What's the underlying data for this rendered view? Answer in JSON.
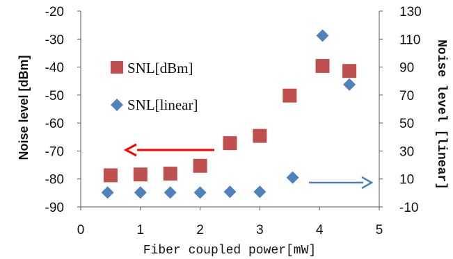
{
  "chart_data": {
    "type": "scatter",
    "xlabel": "Fiber coupled power[mW]",
    "ylabel": "Noise level [dBm]",
    "y2label": "Noise level [linear]",
    "xlim": [
      0,
      5
    ],
    "ylim": [
      -90,
      -20
    ],
    "y2lim": [
      -10,
      130
    ],
    "xticks": [
      "0",
      "1",
      "2",
      "3",
      "4",
      "5"
    ],
    "yticks": [
      "-20",
      "-30",
      "-40",
      "-50",
      "-60",
      "-70",
      "-80",
      "-90"
    ],
    "y2ticks": [
      "130",
      "110",
      "90",
      "70",
      "50",
      "30",
      "10",
      "-10"
    ],
    "grid": false,
    "legend_position": "left",
    "series": [
      {
        "name": "SNL[dBm]",
        "axis": "left",
        "marker": "square",
        "color": "#c0504d",
        "x": [
          0.5,
          1.0,
          1.5,
          2.0,
          2.5,
          3.0,
          3.5,
          4.05,
          4.5
        ],
        "y": [
          -78.7,
          -78.4,
          -78.1,
          -75.3,
          -67.2,
          -64.6,
          -50.2,
          -39.6,
          -41.4
        ]
      },
      {
        "name": "SNL[linear]",
        "axis": "right",
        "marker": "diamond",
        "color": "#4f81bd",
        "x": [
          0.45,
          1.0,
          1.5,
          2.0,
          2.5,
          3.0,
          3.55,
          4.05,
          4.5
        ],
        "y": [
          0.3,
          0.3,
          0.3,
          0.3,
          0.8,
          0.8,
          11.0,
          112.5,
          77.5
        ]
      }
    ],
    "annotations": [
      {
        "type": "arrow",
        "direction": "left",
        "color": "#ff0000",
        "meaning": "left axis"
      },
      {
        "type": "arrow",
        "direction": "right",
        "color": "#4a7ebb",
        "meaning": "right axis"
      }
    ]
  }
}
